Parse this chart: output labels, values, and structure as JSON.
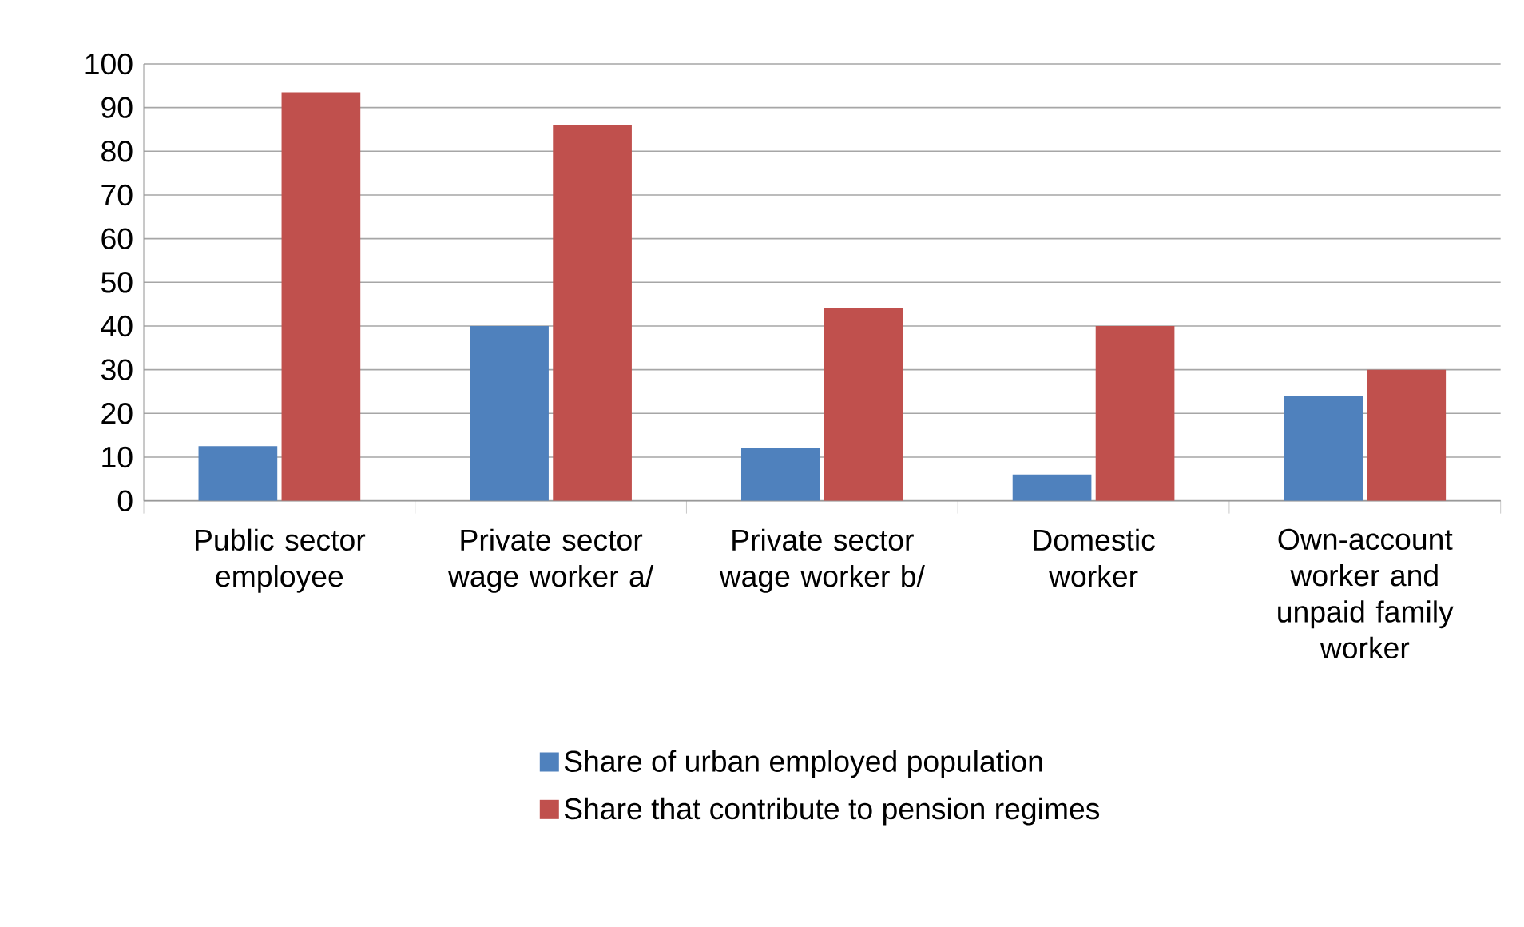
{
  "chart_data": {
    "type": "bar",
    "categories": [
      "Public sector employee",
      "Private sector wage worker a/",
      "Private sector wage worker b/",
      "Domestic worker",
      "Own-account worker and unpaid family worker"
    ],
    "series": [
      {
        "name": "Share of urban employed population",
        "color": "#4f81bd",
        "values": [
          12.5,
          40,
          12,
          6,
          24
        ]
      },
      {
        "name": "Share that contribute to pension regimes",
        "color": "#c0504d",
        "values": [
          93.5,
          86,
          44,
          40,
          30
        ]
      }
    ],
    "ylim": [
      0,
      100
    ],
    "yticks": [
      0,
      10,
      20,
      30,
      40,
      50,
      60,
      70,
      80,
      90,
      100
    ],
    "grid": "y",
    "legend": "bottom"
  }
}
